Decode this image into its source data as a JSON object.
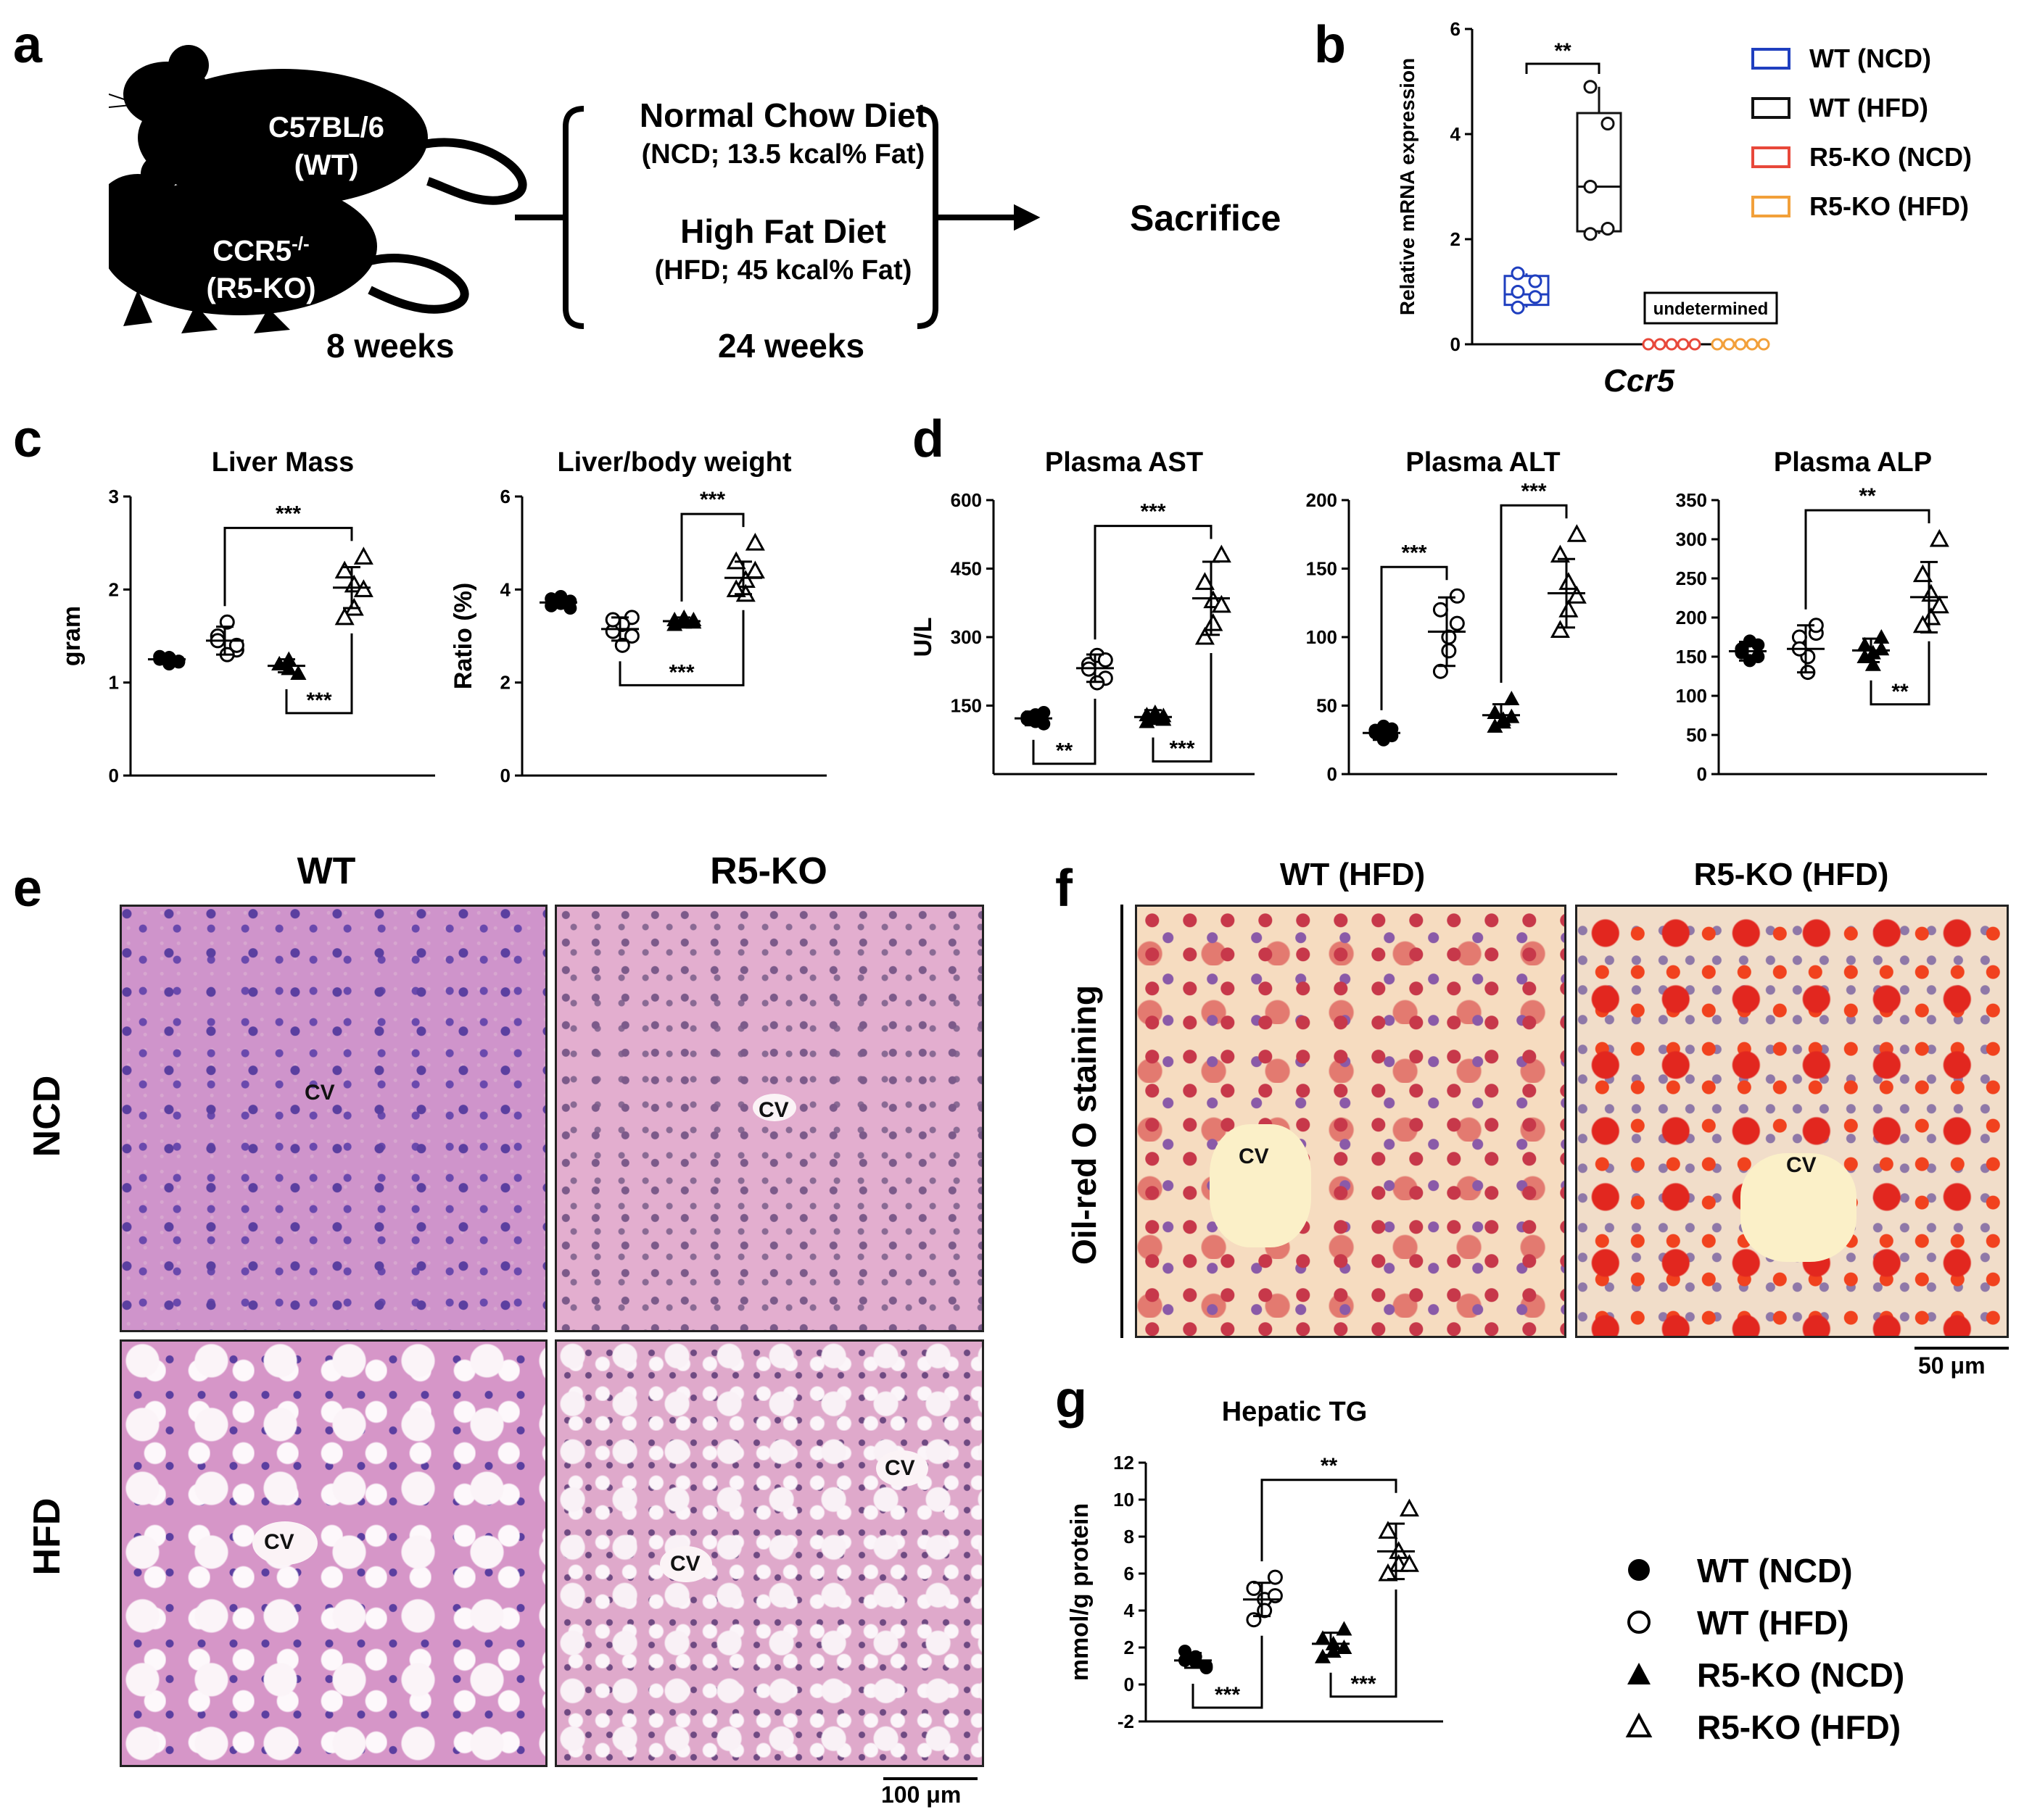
{
  "panel_letters": {
    "a": "a",
    "b": "b",
    "c": "c",
    "d": "d",
    "e": "e",
    "f": "f",
    "g": "g"
  },
  "panel_a": {
    "mouse_wt_line1": "C57BL/6",
    "mouse_wt_line2": "(WT)",
    "mouse_ko_line1": "CCR5",
    "mouse_ko_sup": "-/-",
    "mouse_ko_line2": "(R5-KO)",
    "ncd_title": "Normal Chow Diet",
    "ncd_sub": "(NCD; 13.5 kcal% Fat)",
    "hfd_title": "High Fat Diet",
    "hfd_sub": "(HFD; 45 kcal% Fat)",
    "outcome": "Sacrifice",
    "age_label": "8 weeks",
    "duration_label": "24 weeks"
  },
  "legend_b": [
    {
      "label": "WT (NCD)",
      "color": "#1f3fbf"
    },
    {
      "label": "WT (HFD)",
      "color": "#111111"
    },
    {
      "label": "R5-KO (NCD)",
      "color": "#e8483a"
    },
    {
      "label": "R5-KO (HFD)",
      "color": "#f2a03a"
    }
  ],
  "legend_g": [
    {
      "label": "WT (NCD)",
      "marker": "filled-circle"
    },
    {
      "label": "WT (HFD)",
      "marker": "open-circle"
    },
    {
      "label": "R5-KO (NCD)",
      "marker": "filled-triangle"
    },
    {
      "label": "R5-KO (HFD)",
      "marker": "open-triangle"
    }
  ],
  "chart_data": [
    {
      "id": "b",
      "type": "box",
      "title": "",
      "xlabel": "Ccr5",
      "ylabel": "Relative mRNA expression",
      "ylim": [
        0,
        6
      ],
      "yticks": [
        0,
        2,
        4,
        6
      ],
      "groups": [
        {
          "name": "WT (NCD)",
          "color": "#1f3fbf",
          "points": [
            0.7,
            0.9,
            1.0,
            1.2,
            1.35
          ],
          "box": {
            "min": 0.7,
            "q1": 0.75,
            "median": 0.95,
            "q3": 1.3,
            "max": 1.35
          }
        },
        {
          "name": "WT (HFD)",
          "color": "#111111",
          "points": [
            2.1,
            2.2,
            3.0,
            4.2,
            4.9
          ],
          "box": {
            "min": 2.1,
            "q1": 2.15,
            "median": 3.0,
            "q3": 4.4,
            "max": 4.9
          }
        },
        {
          "name": "R5-KO (NCD)",
          "color": "#e8483a",
          "points": [
            0,
            0,
            0,
            0,
            0
          ]
        },
        {
          "name": "R5-KO (HFD)",
          "color": "#f2a03a",
          "points": [
            0,
            0,
            0,
            0,
            0
          ]
        }
      ],
      "annotations": [
        {
          "text": "**",
          "between": [
            0,
            1
          ]
        },
        {
          "text": "undetermined",
          "over": [
            2,
            3
          ]
        }
      ]
    },
    {
      "id": "c1",
      "type": "scatter",
      "title": "Liver Mass",
      "ylabel": "gram",
      "ylim": [
        0,
        3
      ],
      "yticks": [
        0,
        1,
        2,
        3
      ],
      "groups": [
        {
          "name": "WT (NCD)",
          "marker": "filled-circle",
          "points": [
            1.22,
            1.25,
            1.27,
            1.2,
            1.28,
            1.23
          ],
          "mean": 1.25,
          "sd": 0.04
        },
        {
          "name": "WT (HFD)",
          "marker": "open-circle",
          "points": [
            1.35,
            1.5,
            1.65,
            1.3,
            1.45,
            1.4
          ],
          "mean": 1.45,
          "sd": 0.15
        },
        {
          "name": "R5-KO (NCD)",
          "marker": "filled-triangle",
          "points": [
            1.1,
            1.2,
            1.25,
            1.15,
            1.2,
            1.1
          ],
          "mean": 1.18,
          "sd": 0.07
        },
        {
          "name": "R5-KO (HFD)",
          "marker": "open-triangle",
          "points": [
            2.35,
            2.2,
            2.05,
            1.8,
            1.7,
            2.0
          ],
          "mean": 2.02,
          "sd": 0.22
        }
      ],
      "annotations": [
        {
          "text": "***",
          "between": [
            1,
            3
          ],
          "side": "top"
        },
        {
          "text": "***",
          "between": [
            2,
            3
          ],
          "side": "bottom"
        }
      ]
    },
    {
      "id": "c2",
      "type": "scatter",
      "title": "Liver/body weight",
      "ylabel": "Ratio (%)",
      "ylim": [
        0,
        6
      ],
      "yticks": [
        0,
        2,
        4,
        6
      ],
      "groups": [
        {
          "name": "WT (NCD)",
          "marker": "filled-circle",
          "points": [
            3.6,
            3.8,
            3.7,
            3.85,
            3.65,
            3.75
          ],
          "mean": 3.72,
          "sd": 0.1
        },
        {
          "name": "WT (HFD)",
          "marker": "open-circle",
          "points": [
            3.4,
            3.1,
            2.8,
            3.25,
            3.35,
            3.0
          ],
          "mean": 3.15,
          "sd": 0.25
        },
        {
          "name": "R5-KO (NCD)",
          "marker": "filled-triangle",
          "points": [
            3.3,
            3.35,
            3.3,
            3.4,
            3.25,
            3.35
          ],
          "mean": 3.32,
          "sd": 0.08
        },
        {
          "name": "R5-KO (HFD)",
          "marker": "open-triangle",
          "points": [
            5.0,
            4.6,
            4.2,
            3.9,
            4.0,
            4.4
          ],
          "mean": 4.25,
          "sd": 0.35
        }
      ],
      "annotations": [
        {
          "text": "***",
          "between": [
            2,
            3
          ],
          "side": "top"
        },
        {
          "text": "***",
          "between": [
            1,
            3
          ],
          "side": "bottom"
        }
      ]
    },
    {
      "id": "d1",
      "type": "scatter",
      "title": "Plasma AST",
      "ylabel": "U/L",
      "ylim": [
        0,
        600
      ],
      "yticks": [
        150,
        300,
        450,
        600
      ],
      "groups": [
        {
          "name": "WT (NCD)",
          "marker": "filled-circle",
          "points": [
            110,
            125,
            130,
            115,
            120,
            135
          ],
          "mean": 122,
          "sd": 15
        },
        {
          "name": "WT (HFD)",
          "marker": "open-circle",
          "points": [
            210,
            240,
            260,
            200,
            230,
            250
          ],
          "mean": 232,
          "sd": 30
        },
        {
          "name": "R5-KO (NCD)",
          "marker": "filled-triangle",
          "points": [
            120,
            130,
            125,
            135,
            115,
            128
          ],
          "mean": 125,
          "sd": 15
        },
        {
          "name": "R5-KO (HFD)",
          "marker": "open-triangle",
          "points": [
            480,
            420,
            380,
            330,
            300,
            370
          ],
          "mean": 385,
          "sd": 80
        }
      ],
      "annotations": [
        {
          "text": "***",
          "between": [
            1,
            3
          ],
          "side": "top"
        },
        {
          "text": "**",
          "between": [
            0,
            1
          ],
          "side": "bottom"
        },
        {
          "text": "***",
          "between": [
            2,
            3
          ],
          "side": "bottom"
        }
      ]
    },
    {
      "id": "d2",
      "type": "scatter",
      "title": "Plasma ALT",
      "ylim": [
        0,
        200
      ],
      "yticks": [
        0,
        50,
        100,
        150,
        200
      ],
      "groups": [
        {
          "name": "WT (NCD)",
          "marker": "filled-circle",
          "points": [
            28,
            32,
            35,
            25,
            30,
            33
          ],
          "mean": 30,
          "sd": 5
        },
        {
          "name": "WT (HFD)",
          "marker": "open-circle",
          "points": [
            130,
            120,
            100,
            90,
            75,
            110
          ],
          "mean": 104,
          "sd": 25
        },
        {
          "name": "R5-KO (NCD)",
          "marker": "filled-triangle",
          "points": [
            55,
            45,
            40,
            38,
            35,
            42
          ],
          "mean": 43,
          "sd": 8
        },
        {
          "name": "R5-KO (HFD)",
          "marker": "open-triangle",
          "points": [
            175,
            160,
            140,
            120,
            105,
            130
          ],
          "mean": 132,
          "sd": 25
        }
      ],
      "annotations": [
        {
          "text": "***",
          "between": [
            0,
            1
          ],
          "side": "top"
        },
        {
          "text": "***",
          "between": [
            2,
            3
          ],
          "side": "top"
        }
      ]
    },
    {
      "id": "d3",
      "type": "scatter",
      "title": "Plasma ALP",
      "ylim": [
        0,
        350
      ],
      "yticks": [
        0,
        50,
        100,
        150,
        200,
        250,
        300,
        350
      ],
      "groups": [
        {
          "name": "WT (NCD)",
          "marker": "filled-circle",
          "points": [
            150,
            160,
            170,
            145,
            155,
            165
          ],
          "mean": 157,
          "sd": 12
        },
        {
          "name": "WT (HFD)",
          "marker": "open-circle",
          "points": [
            180,
            175,
            150,
            130,
            160,
            190
          ],
          "mean": 160,
          "sd": 30
        },
        {
          "name": "R5-KO (NCD)",
          "marker": "filled-triangle",
          "points": [
            175,
            165,
            155,
            140,
            150,
            160
          ],
          "mean": 158,
          "sd": 15
        },
        {
          "name": "R5-KO (HFD)",
          "marker": "open-triangle",
          "points": [
            300,
            255,
            230,
            200,
            190,
            215
          ],
          "mean": 226,
          "sd": 45
        }
      ],
      "annotations": [
        {
          "text": "**",
          "between": [
            1,
            3
          ],
          "side": "top"
        },
        {
          "text": "**",
          "between": [
            2,
            3
          ],
          "side": "bottom"
        }
      ]
    },
    {
      "id": "g",
      "type": "scatter",
      "title": "Hepatic TG",
      "ylabel": "mmol/g protein",
      "ylim": [
        -2,
        12
      ],
      "yticks": [
        -2,
        0,
        2,
        4,
        6,
        8,
        10,
        12
      ],
      "groups": [
        {
          "name": "WT (NCD)",
          "marker": "filled-circle",
          "points": [
            1.0,
            1.3,
            1.5,
            1.2,
            1.8,
            0.9
          ],
          "mean": 1.3,
          "sd": 0.4
        },
        {
          "name": "WT (HFD)",
          "marker": "open-circle",
          "points": [
            5.8,
            5.2,
            4.6,
            4.0,
            3.5,
            4.8
          ],
          "mean": 4.6,
          "sd": 0.9
        },
        {
          "name": "R5-KO (NCD)",
          "marker": "filled-triangle",
          "points": [
            3.0,
            2.5,
            2.2,
            1.8,
            1.5,
            2.0
          ],
          "mean": 2.2,
          "sd": 0.6
        },
        {
          "name": "R5-KO (HFD)",
          "marker": "open-triangle",
          "points": [
            9.5,
            8.3,
            7.2,
            6.5,
            6.0,
            6.5
          ],
          "mean": 7.2,
          "sd": 1.5
        }
      ],
      "annotations": [
        {
          "text": "**",
          "between": [
            1,
            3
          ],
          "side": "top"
        },
        {
          "text": "***",
          "between": [
            0,
            1
          ],
          "side": "bottom"
        },
        {
          "text": "***",
          "between": [
            2,
            3
          ],
          "side": "bottom"
        }
      ]
    }
  ],
  "panel_e": {
    "col_wt": "WT",
    "col_ko": "R5-KO",
    "row_ncd": "NCD",
    "row_hfd": "HFD",
    "cv": "CV",
    "scale": "100 μm"
  },
  "panel_f": {
    "col_wt": "WT (HFD)",
    "col_ko": "R5-KO (HFD)",
    "row_label": "Oil-red O staining",
    "cv": "CV",
    "scale": "50 μm"
  }
}
